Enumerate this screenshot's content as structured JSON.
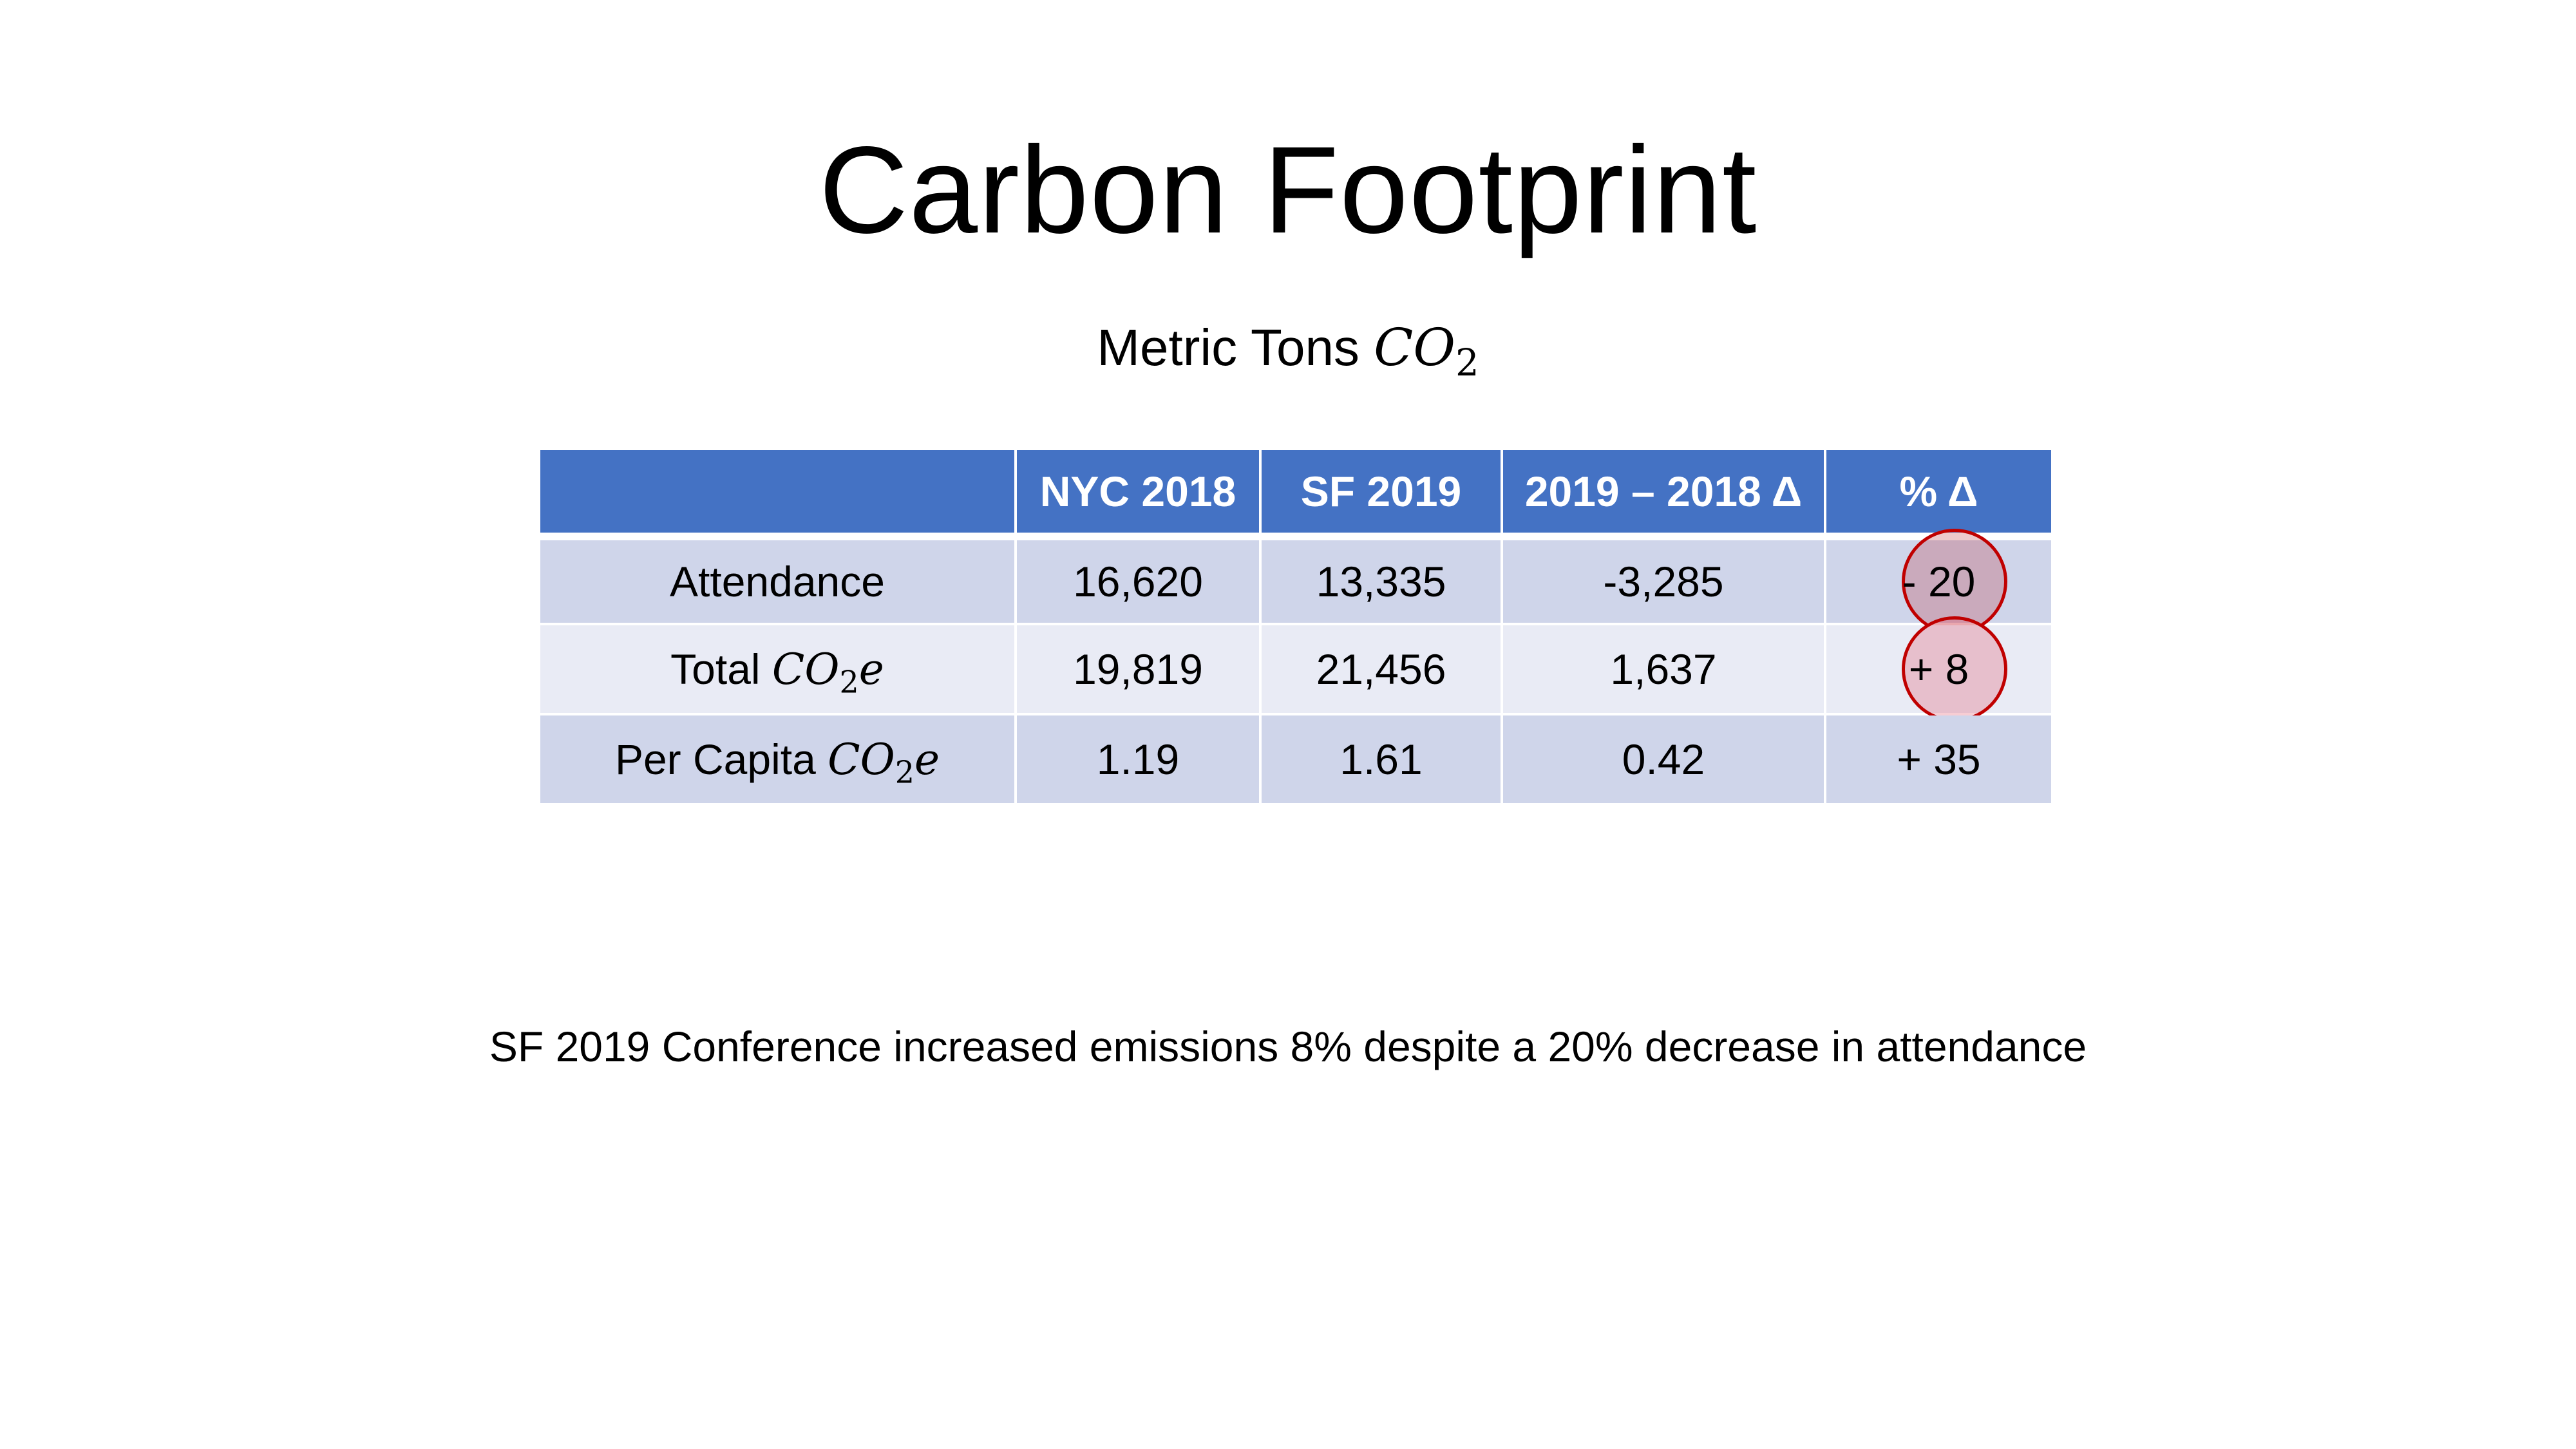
{
  "slide": {
    "title": "Carbon Footprint",
    "subtitle_text": "Metric Tons ",
    "subtitle_math_base": "CO",
    "subtitle_math_sub": "2"
  },
  "table": {
    "header": [
      "",
      "NYC 2018",
      "SF 2019",
      "2019 – 2018 Δ",
      "% Δ"
    ],
    "rows": [
      {
        "label": "Attendance",
        "nyc_2018": "16,620",
        "sf_2019": "13,335",
        "delta": "-3,285",
        "pct_delta": "- 20"
      },
      {
        "label_prefix": "Total ",
        "label_math_base": "CO",
        "label_math_sub": "2",
        "label_math_suffix": "e",
        "nyc_2018": "19,819",
        "sf_2019": "21,456",
        "delta": "1,637",
        "pct_delta": "+ 8"
      },
      {
        "label_prefix": "Per Capita ",
        "label_math_base": "CO",
        "label_math_sub": "2",
        "label_math_suffix": "e",
        "nyc_2018": "1.19",
        "sf_2019": "1.61",
        "delta": "0.42",
        "pct_delta": "+ 35"
      }
    ],
    "colors": {
      "header_bg": "#4472c4",
      "row_odd_bg": "#cfd5ea",
      "row_even_bg": "#e9ebf5",
      "highlight_circle": "#c00000"
    }
  },
  "footer": {
    "note": "SF 2019 Conference increased emissions 8% despite a 20% decrease in attendance"
  }
}
